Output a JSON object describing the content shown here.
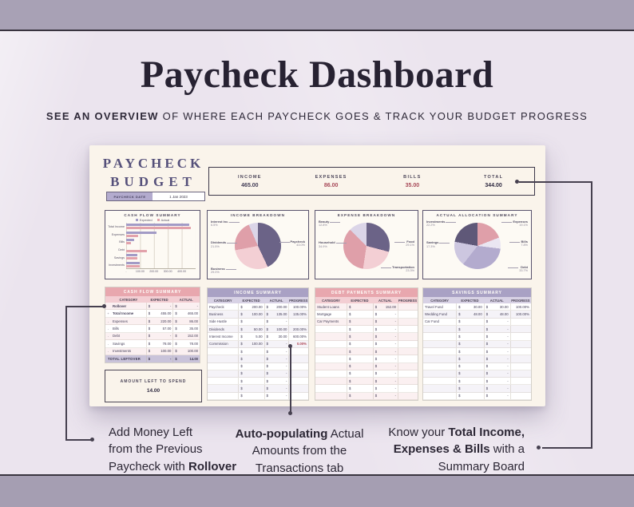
{
  "page": {
    "title": "Paycheck Dashboard",
    "subtitle_bold": "SEE AN OVERVIEW",
    "subtitle_rest": " OF WHERE EACH PAYCHECK GOES & TRACK YOUR BUDGET PROGRESS"
  },
  "dashboard": {
    "logo": {
      "line1": "PAYCHECK",
      "line2": "BUDGET"
    },
    "paycheck_date": {
      "label": "PAYCHECK DATE",
      "value": "1 Jan 2023"
    },
    "summary_board": {
      "items": [
        {
          "label": "INCOME",
          "value": "465.00",
          "tone": "dark"
        },
        {
          "label": "EXPENSES",
          "value": "86.00",
          "tone": "red"
        },
        {
          "label": "BILLS",
          "value": "35.00",
          "tone": "red"
        },
        {
          "label": "TOTAL",
          "value": "344.00",
          "tone": "total"
        }
      ]
    },
    "amount_left": {
      "label": "AMOUNT LEFT TO SPEND",
      "value": "14.00"
    }
  },
  "chart_data": [
    {
      "type": "bar",
      "title": "CASH FLOW SUMMARY",
      "orientation": "horizontal",
      "categories": [
        "Total Income",
        "Expenses",
        "Bills",
        "Debt",
        "Savings",
        "Investments"
      ],
      "series": [
        {
          "name": "Expected",
          "color": "#a29bc6",
          "values": [
            455,
            220,
            57,
            0,
            78,
            100
          ]
        },
        {
          "name": "Actual",
          "color": "#e2a2ab",
          "values": [
            465,
            86,
            35,
            152,
            78,
            100
          ]
        }
      ],
      "xlim": [
        0,
        500
      ],
      "x_ticks": [
        "-",
        "100.00",
        "200.00",
        "300.00",
        "400.00"
      ],
      "legend_position": "top"
    },
    {
      "type": "pie",
      "title": "INCOME BREAKDOWN",
      "slices": [
        {
          "label": "Paycheck",
          "pct": 43.0,
          "color": "#6b6387",
          "label_pos": "right"
        },
        {
          "label": "Business",
          "pct": 29.0,
          "color": "#f3cfd4",
          "label_pos": "bottom-left"
        },
        {
          "label": "Dividends",
          "pct": 21.5,
          "color": "#df9fa9",
          "label_pos": "left"
        },
        {
          "label": "Interest Inc.",
          "pct": 6.5,
          "color": "#dbd5e8",
          "label_pos": "top-left"
        }
      ]
    },
    {
      "type": "pie",
      "title": "EXPENSE BREAKDOWN",
      "slices": [
        {
          "label": "Food",
          "pct": 29.1,
          "color": "#6b6387",
          "label_pos": "right"
        },
        {
          "label": "Transportation",
          "pct": 23.3,
          "color": "#f3cfd4",
          "label_pos": "bottom-right"
        },
        {
          "label": "Household",
          "pct": 34.9,
          "color": "#df9fa9",
          "label_pos": "left"
        },
        {
          "label": "Beauty",
          "pct": 12.8,
          "color": "#dbd5e8",
          "label_pos": "top-left"
        }
      ]
    },
    {
      "type": "pie",
      "title": "ACTUAL ALLOCATION SUMMARY",
      "slices": [
        {
          "label": "Expenses",
          "pct": 19.1,
          "color": "#df9fa9",
          "label_pos": "top-right"
        },
        {
          "label": "Bills",
          "pct": 7.8,
          "color": "#eae6f2",
          "label_pos": "right"
        },
        {
          "label": "Debt",
          "pct": 33.7,
          "color": "#b3abce",
          "label_pos": "bottom-right"
        },
        {
          "label": "Savings",
          "pct": 17.3,
          "color": "#cdc7e0",
          "label_pos": "left"
        },
        {
          "label": "Investments",
          "pct": 22.2,
          "color": "#5f5878",
          "label_pos": "top-left"
        }
      ]
    }
  ],
  "tables": {
    "cash_flow": {
      "title": "CASH FLOW SUMMARY",
      "theme": "pink",
      "columns": [
        "CATEGORY",
        "EXPECTED",
        "ACTUAL"
      ],
      "rows": [
        {
          "sign": "",
          "category": "Rollover",
          "expected": "-",
          "actual": "-",
          "bold": true
        },
        {
          "sign": "+",
          "category": "Total Income",
          "expected": "455.00",
          "actual": "465.00",
          "bold": true
        },
        {
          "sign": "-",
          "category": "Expenses",
          "expected": "220.00",
          "actual": "86.00"
        },
        {
          "sign": "-",
          "category": "Bills",
          "expected": "57.00",
          "actual": "35.00"
        },
        {
          "sign": "-",
          "category": "Debt",
          "expected": "-",
          "actual": "152.00"
        },
        {
          "sign": "-",
          "category": "Savings",
          "expected": "78.00",
          "actual": "78.00"
        },
        {
          "sign": "-",
          "category": "Investments",
          "expected": "100.00",
          "actual": "100.00"
        }
      ],
      "total": {
        "label": "TOTAL LEFTOVER",
        "expected": "-",
        "actual": "14.00"
      }
    },
    "income": {
      "title": "INCOME SUMMARY",
      "theme": "purple",
      "columns": [
        "CATEGORY",
        "EXPECTED",
        "ACTUAL",
        "PROGRESS"
      ],
      "rows": [
        {
          "category": "Paycheck",
          "expected": "200.00",
          "actual": "200.00",
          "progress": "100.00%"
        },
        {
          "category": "Business",
          "expected": "100.00",
          "actual": "135.00",
          "progress": "135.00%"
        },
        {
          "category": "Side Hustle",
          "expected": "",
          "actual": "-",
          "progress": ""
        },
        {
          "category": "Dividends",
          "expected": "50.00",
          "actual": "100.00",
          "progress": "200.00%"
        },
        {
          "category": "Interest Income",
          "expected": "5.00",
          "actual": "30.00",
          "progress": "600.00%"
        },
        {
          "category": "Commission",
          "expected": "100.00",
          "actual": "-",
          "progress": "0.00%",
          "red": true
        },
        {
          "category": "",
          "expected": "",
          "actual": "-",
          "progress": ""
        },
        {
          "category": "",
          "expected": "",
          "actual": "-",
          "progress": ""
        },
        {
          "category": "",
          "expected": "",
          "actual": "-",
          "progress": ""
        },
        {
          "category": "",
          "expected": "",
          "actual": "-",
          "progress": ""
        },
        {
          "category": "",
          "expected": "",
          "actual": "-",
          "progress": ""
        },
        {
          "category": "",
          "expected": "",
          "actual": "-",
          "progress": ""
        },
        {
          "category": "",
          "expected": "",
          "actual": "-",
          "progress": ""
        }
      ]
    },
    "debt": {
      "title": "DEBT PAYMENTS SUMMARY",
      "theme": "pink",
      "columns": [
        "CATEGORY",
        "EXPECTED",
        "ACTUAL",
        "PROGRESS"
      ],
      "rows": [
        {
          "category": "Student Loans",
          "expected": "",
          "actual": "152.00",
          "progress": ""
        },
        {
          "category": "Mortgage",
          "expected": "",
          "actual": "-",
          "progress": ""
        },
        {
          "category": "Car Payments",
          "expected": "",
          "actual": "-",
          "progress": ""
        },
        {
          "category": "",
          "expected": "",
          "actual": "-",
          "progress": ""
        },
        {
          "category": "",
          "expected": "",
          "actual": "-",
          "progress": ""
        },
        {
          "category": "",
          "expected": "",
          "actual": "-",
          "progress": ""
        },
        {
          "category": "",
          "expected": "",
          "actual": "-",
          "progress": ""
        },
        {
          "category": "",
          "expected": "",
          "actual": "-",
          "progress": ""
        },
        {
          "category": "",
          "expected": "",
          "actual": "-",
          "progress": ""
        },
        {
          "category": "",
          "expected": "",
          "actual": "-",
          "progress": ""
        },
        {
          "category": "",
          "expected": "",
          "actual": "-",
          "progress": ""
        },
        {
          "category": "",
          "expected": "",
          "actual": "-",
          "progress": ""
        },
        {
          "category": "",
          "expected": "",
          "actual": "-",
          "progress": ""
        }
      ]
    },
    "savings": {
      "title": "SAVINGS SUMMARY",
      "theme": "purple",
      "columns": [
        "CATEGORY",
        "EXPECTED",
        "ACTUAL",
        "PROGRESS"
      ],
      "rows": [
        {
          "category": "Travel Fund",
          "expected": "30.00",
          "actual": "30.00",
          "progress": "100.00%"
        },
        {
          "category": "Wedding Fund",
          "expected": "48.00",
          "actual": "48.00",
          "progress": "100.00%"
        },
        {
          "category": "Car Fund",
          "expected": "",
          "actual": "-",
          "progress": ""
        },
        {
          "category": "",
          "expected": "",
          "actual": "-",
          "progress": ""
        },
        {
          "category": "",
          "expected": "",
          "actual": "-",
          "progress": ""
        },
        {
          "category": "",
          "expected": "",
          "actual": "-",
          "progress": ""
        },
        {
          "category": "",
          "expected": "",
          "actual": "-",
          "progress": ""
        },
        {
          "category": "",
          "expected": "",
          "actual": "-",
          "progress": ""
        },
        {
          "category": "",
          "expected": "",
          "actual": "-",
          "progress": ""
        },
        {
          "category": "",
          "expected": "",
          "actual": "-",
          "progress": ""
        },
        {
          "category": "",
          "expected": "",
          "actual": "-",
          "progress": ""
        },
        {
          "category": "",
          "expected": "",
          "actual": "-",
          "progress": ""
        },
        {
          "category": "",
          "expected": "",
          "actual": "-",
          "progress": ""
        }
      ]
    }
  },
  "annotations": {
    "a1": {
      "l1": "Add Money Left",
      "l2": "from the Previous",
      "l3a": "Paycheck with ",
      "l3b": "Rollover"
    },
    "a2": {
      "l1b": "Auto-populating",
      "l1a": " Actual",
      "l2": "Amounts from the",
      "l3": "Transactions tab"
    },
    "a3": {
      "l1a": "Know your ",
      "l1b": "Total Income,",
      "l2b": "Expenses & Bills",
      "l2a": " with a",
      "l3": "Summary Board"
    }
  },
  "colors": {
    "accent_pink": "#e8a7ae",
    "accent_purple": "#a9a1c4",
    "negative_red": "#a84a59",
    "dark_text": "#3f3a52",
    "page_bg": "#ebe4ee",
    "frame_bar": "#a8a1b5",
    "card_cream": "#faf4eb"
  }
}
